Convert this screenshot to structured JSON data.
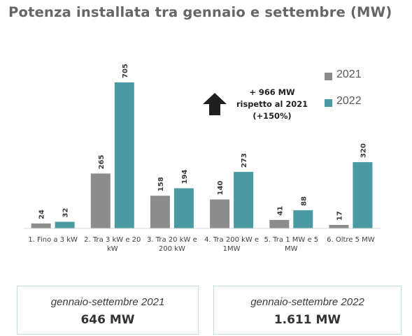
{
  "title": "Potenza installata tra gennaio e settembre (MW)",
  "colors": {
    "series_2021": "#8c8c8c",
    "series_2022": "#4a9aa3",
    "text": "#3a3a3a"
  },
  "legend": [
    {
      "label": "2021"
    },
    {
      "label": "2022"
    }
  ],
  "annotation": {
    "line1": "+ 966 MW",
    "line2": "rispetto al 2021",
    "line3": "(+150%)",
    "icon": "arrow-up-icon"
  },
  "chart_data": {
    "type": "bar",
    "categories": [
      [
        "1. Fino a 3 kW"
      ],
      [
        "2. Tra 3 kW e 20",
        "kW"
      ],
      [
        "3. Tra 20 kW e",
        "200 kW"
      ],
      [
        "4. Tra 200 kW e",
        "1MW"
      ],
      [
        "5. Tra 1 MW e 5",
        "MW"
      ],
      [
        "6. Oltre 5 MW"
      ]
    ],
    "series": [
      {
        "name": "2021",
        "values": [
          24,
          265,
          158,
          140,
          41,
          17
        ]
      },
      {
        "name": "2022",
        "values": [
          32,
          705,
          194,
          273,
          88,
          320
        ]
      }
    ],
    "ylim": [
      0,
      705
    ],
    "grid": false,
    "legend_position": "top-right",
    "data_labels": true
  },
  "summary": [
    {
      "period": "gennaio-settembre 2021",
      "total": "646 MW"
    },
    {
      "period": "gennaio-settembre 2022",
      "total": "1.611 MW"
    }
  ]
}
